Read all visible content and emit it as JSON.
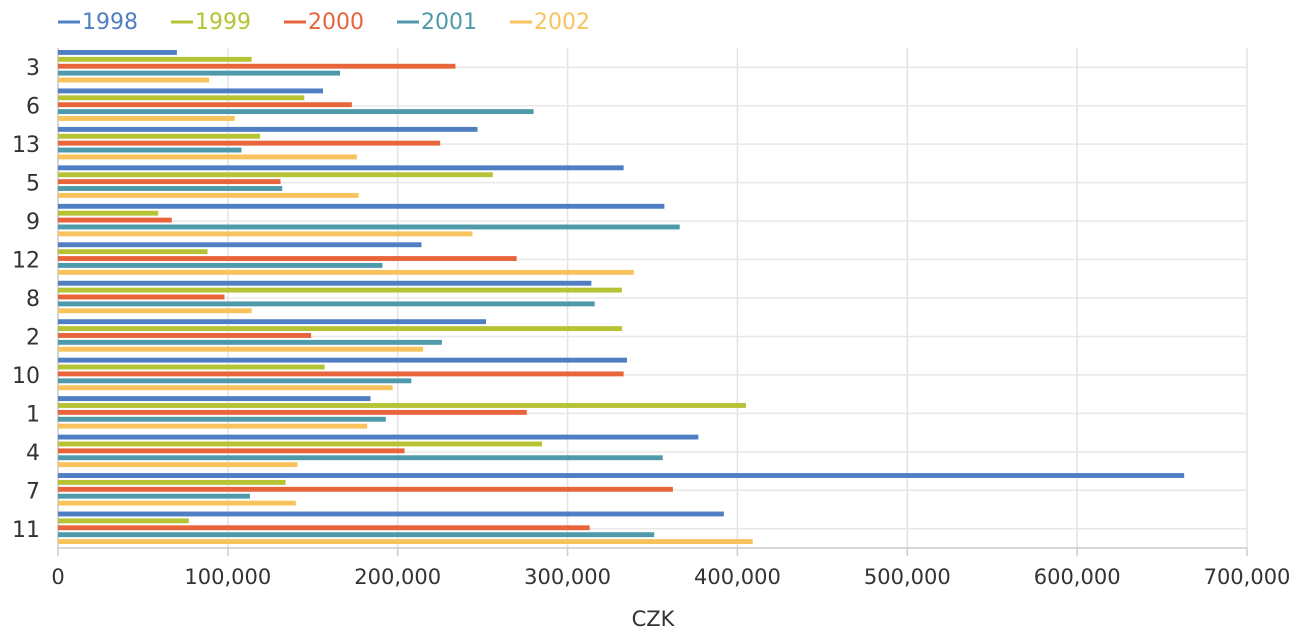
{
  "chart_data": {
    "type": "bar",
    "orientation": "horizontal",
    "x_label": "CZK",
    "categories": [
      "3",
      "6",
      "13",
      "5",
      "9",
      "12",
      "8",
      "2",
      "10",
      "1",
      "4",
      "7",
      "11"
    ],
    "series": [
      {
        "name": "1998",
        "color": "#4f7fc2",
        "values": [
          70000,
          156000,
          247000,
          333000,
          357000,
          214000,
          314000,
          252000,
          335000,
          184000,
          377000,
          663000,
          392000
        ]
      },
      {
        "name": "1999",
        "color": "#b5c335",
        "values": [
          114000,
          145000,
          119000,
          256000,
          59000,
          88000,
          332000,
          332000,
          157000,
          405000,
          285000,
          134000,
          77000
        ]
      },
      {
        "name": "2000",
        "color": "#e8643a",
        "values": [
          234000,
          173000,
          225000,
          131000,
          67000,
          270000,
          98000,
          149000,
          333000,
          276000,
          204000,
          362000,
          313000
        ]
      },
      {
        "name": "2001",
        "color": "#4e9aab",
        "values": [
          166000,
          280000,
          108000,
          132000,
          366000,
          191000,
          316000,
          226000,
          208000,
          193000,
          356000,
          113000,
          351000
        ]
      },
      {
        "name": "2002",
        "color": "#f8c35c",
        "values": [
          89000,
          104000,
          176000,
          177000,
          244000,
          339000,
          114000,
          215000,
          197000,
          182000,
          141000,
          140000,
          409000
        ]
      }
    ],
    "xlim": [
      0,
      700000
    ],
    "xticks": [
      0,
      {
        "value": 100000,
        "label": "100,000"
      },
      {
        "value": 200000,
        "label": "200,000"
      },
      {
        "value": 300000,
        "label": "300,000"
      },
      {
        "value": 400000,
        "label": "400,000"
      },
      {
        "value": 500000,
        "label": "500,000"
      },
      {
        "value": 600000,
        "label": "600,000"
      },
      {
        "value": 700000,
        "label": "700,000"
      }
    ],
    "grid": true,
    "legend": "top"
  }
}
